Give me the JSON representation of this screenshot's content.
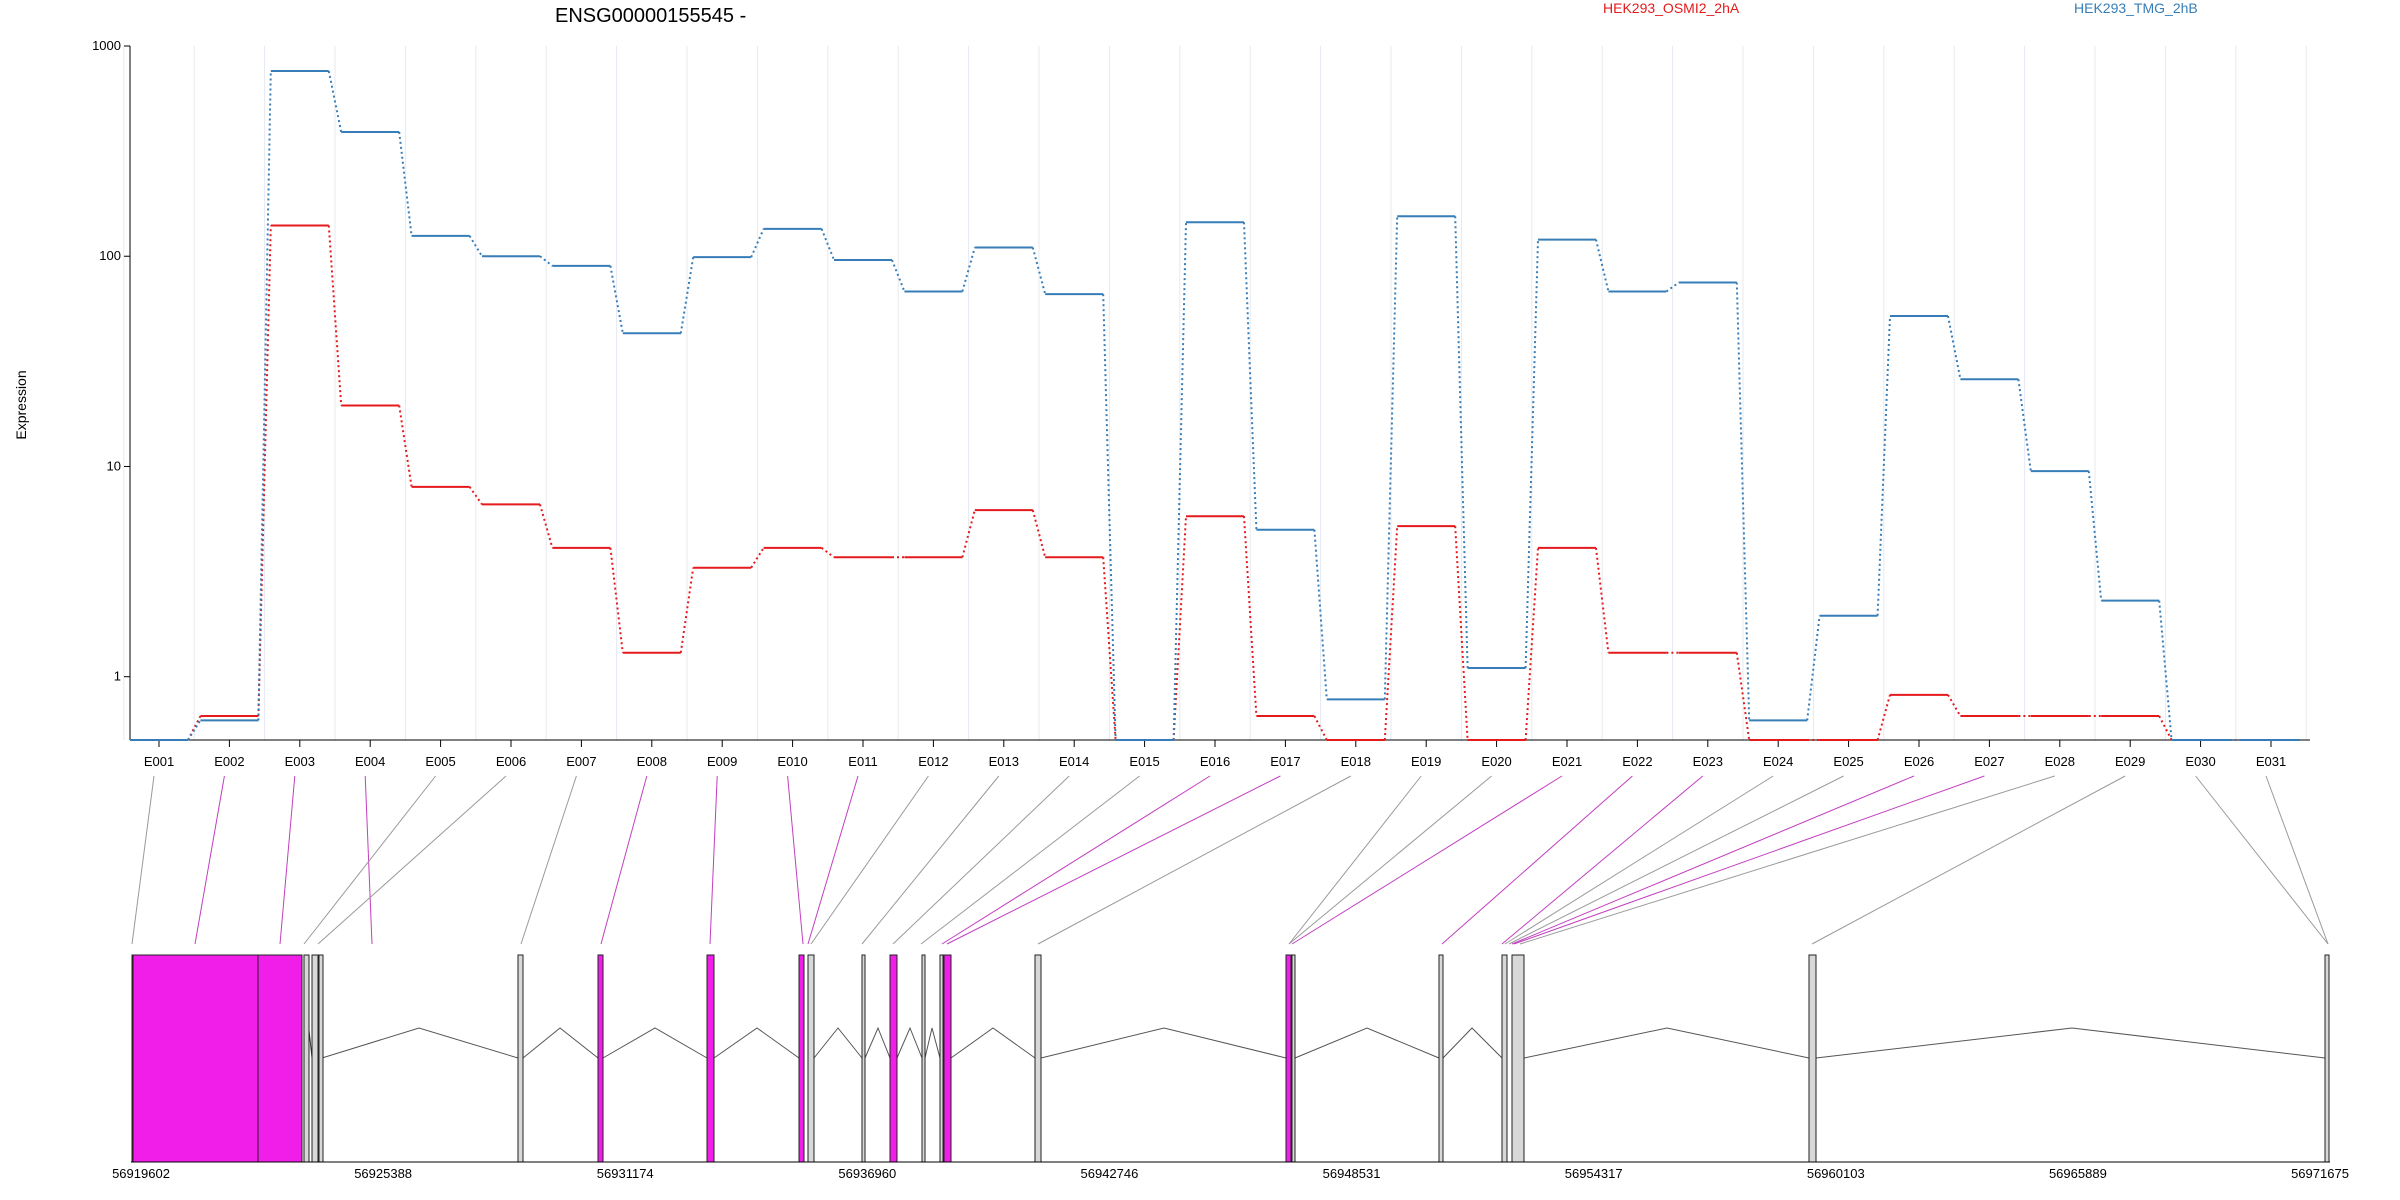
{
  "chart_data": {
    "type": "line",
    "title": "ENSG00000155545 -",
    "ylabel": "Expression",
    "yscale": "log",
    "ylim": [
      0.5,
      1000
    ],
    "yticks": [
      1,
      10,
      100,
      1000
    ],
    "ytick_labels": [
      "1",
      "10",
      "100",
      "1000"
    ],
    "grid": "vertical",
    "legend_position": "top",
    "categories": [
      "E001",
      "E002",
      "E003",
      "E004",
      "E005",
      "E006",
      "E007",
      "E008",
      "E009",
      "E010",
      "E011",
      "E012",
      "E013",
      "E014",
      "E015",
      "E016",
      "E017",
      "E018",
      "E019",
      "E020",
      "E021",
      "E022",
      "E023",
      "E024",
      "E025",
      "E026",
      "E027",
      "E028",
      "E029",
      "E030",
      "E031"
    ],
    "series": [
      {
        "name": "HEK293_OSMI2_2hA",
        "color": "#e41a1c",
        "values": [
          0.5,
          0.65,
          140,
          19.5,
          8,
          6.6,
          4.1,
          1.3,
          3.3,
          4.1,
          3.7,
          3.7,
          6.2,
          3.7,
          0.5,
          5.8,
          0.65,
          0.5,
          5.2,
          0.5,
          4.1,
          1.3,
          1.3,
          0.5,
          0.5,
          0.82,
          0.65,
          0.65,
          0.65,
          0.5,
          0.5
        ]
      },
      {
        "name": "HEK293_TMG_2hB",
        "color": "#377eb8",
        "values": [
          0.5,
          0.62,
          760,
          390,
          125,
          100,
          90,
          43,
          99,
          135,
          96,
          68,
          110,
          66,
          0.5,
          145,
          5,
          0.78,
          155,
          1.1,
          120,
          68,
          75,
          0.62,
          1.95,
          52,
          26,
          9.5,
          2.3,
          0.5,
          0.5
        ]
      }
    ],
    "genome": {
      "axis_labels": [
        "56919602",
        "56925388",
        "56931174",
        "56936960",
        "56942746",
        "56948531",
        "56954317",
        "56960103",
        "56965889",
        "56971675"
      ],
      "exon_highlight_color": "#f01ee8",
      "highlighted_exons": [
        "E002",
        "E003",
        "E004",
        "E008",
        "E009",
        "E010",
        "E011",
        "E016",
        "E017",
        "E021",
        "E022",
        "E023",
        "E026",
        "E027"
      ]
    }
  }
}
